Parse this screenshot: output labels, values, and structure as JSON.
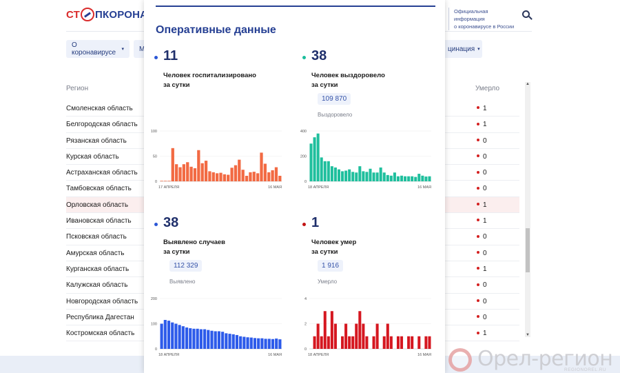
{
  "site": {
    "logo": {
      "part1": "СТ",
      "part2": "ПКОРОНАВИ"
    },
    "info_line1": "Официальная информация",
    "info_line2": "о коронавирусе в России",
    "nav": [
      {
        "label": "О коронавирусе",
        "caret": "▾"
      },
      {
        "label": "М"
      },
      {
        "label": "цинация",
        "caret": "▾"
      }
    ],
    "table": {
      "col_region": "Регион",
      "col_died": "Умерло",
      "rows": [
        {
          "region": "Смоленская область",
          "died": "1"
        },
        {
          "region": "Белгородская область",
          "died": "1"
        },
        {
          "region": "Рязанская область",
          "died": "0"
        },
        {
          "region": "Курская область",
          "died": "0"
        },
        {
          "region": "Астраханская область",
          "died": "0"
        },
        {
          "region": "Тамбовская область",
          "died": "0"
        },
        {
          "region": "Орловская область",
          "died": "1"
        },
        {
          "region": "Ивановская область",
          "died": "1"
        },
        {
          "region": "Псковская область",
          "died": "0"
        },
        {
          "region": "Амурская область",
          "died": "0"
        },
        {
          "region": "Курганская область",
          "died": "1"
        },
        {
          "region": "Калужская область",
          "died": "0"
        },
        {
          "region": "Новгородская область",
          "died": "0"
        },
        {
          "region": "Республика Дагестан",
          "died": "0"
        },
        {
          "region": "Костромская область",
          "died": "1"
        }
      ]
    }
  },
  "modal": {
    "title": "Оперативные данные",
    "stats": [
      {
        "key": "hosp",
        "value": "11",
        "label_l1": "Человек госпитализировано",
        "label_l2": "за сутки",
        "total": "",
        "total_label": "",
        "dot_color": "#2b57d6"
      },
      {
        "key": "recov",
        "value": "38",
        "label_l1": "Человек выздоровело",
        "label_l2": "за сутки",
        "total": "109 870",
        "total_label": "Выздоровело",
        "dot_color": "#1bbd9c"
      },
      {
        "key": "cases",
        "value": "38",
        "label_l1": "Выявлено случаев",
        "label_l2": "за сутки",
        "total": "112 329",
        "total_label": "Выявлено",
        "dot_color": "#2b57d6"
      },
      {
        "key": "dead",
        "value": "1",
        "label_l1": "Человек умер",
        "label_l2": "за сутки",
        "total": "1 916",
        "total_label": "Умерло",
        "dot_color": "#c21414"
      }
    ]
  },
  "chart_data": [
    {
      "type": "bar",
      "color": "#f26a43",
      "yticks": [
        "100",
        "50",
        "0"
      ],
      "ylim": [
        0,
        100
      ],
      "x_start": "17 АПРЕЛЯ",
      "x_end": "16 МАЯ",
      "values": [
        1,
        1,
        1,
        66,
        34,
        28,
        34,
        38,
        29,
        26,
        62,
        36,
        41,
        20,
        18,
        16,
        17,
        14,
        13,
        27,
        32,
        43,
        23,
        11,
        18,
        19,
        16,
        57,
        35,
        18,
        22,
        28,
        11
      ]
    },
    {
      "type": "bar",
      "color": "#1fbf9d",
      "yticks": [
        "400",
        "200",
        "0"
      ],
      "ylim": [
        0,
        400
      ],
      "x_start": "18 АПРЕЛЯ",
      "x_end": "16 МАЯ",
      "values": [
        300,
        350,
        380,
        190,
        160,
        160,
        120,
        110,
        95,
        80,
        85,
        95,
        75,
        70,
        120,
        80,
        75,
        100,
        70,
        70,
        110,
        70,
        50,
        45,
        70,
        40,
        45,
        40,
        40,
        40,
        35,
        60,
        45,
        38,
        40
      ]
    },
    {
      "type": "bar",
      "color": "#2d5bea",
      "yticks": [
        "200",
        "100",
        "0"
      ],
      "ylim": [
        0,
        200
      ],
      "x_start": "18 АПРЕЛЯ",
      "x_end": "16 МАЯ",
      "values": [
        100,
        115,
        112,
        105,
        100,
        95,
        90,
        85,
        82,
        80,
        80,
        78,
        78,
        75,
        72,
        70,
        70,
        68,
        62,
        60,
        58,
        55,
        50,
        48,
        46,
        45,
        43,
        42,
        42,
        40,
        40,
        39,
        41,
        38
      ]
    },
    {
      "type": "bar",
      "color": "#d51720",
      "yticks": [
        "4",
        "2",
        "0"
      ],
      "ylim": [
        0,
        4
      ],
      "x_start": "18 АПРЕЛЯ",
      "x_end": "16 МАЯ",
      "values": [
        0,
        1,
        2,
        1,
        3,
        1,
        3,
        2,
        0,
        1,
        2,
        1,
        1,
        2,
        3,
        2,
        1,
        0,
        1,
        2,
        0,
        1,
        2,
        1,
        0,
        1,
        1,
        0,
        1,
        1,
        0,
        1,
        0,
        1,
        1
      ]
    }
  ],
  "watermark": {
    "text": "Орел-регион",
    "sub": "REGIONOREL.RU"
  }
}
